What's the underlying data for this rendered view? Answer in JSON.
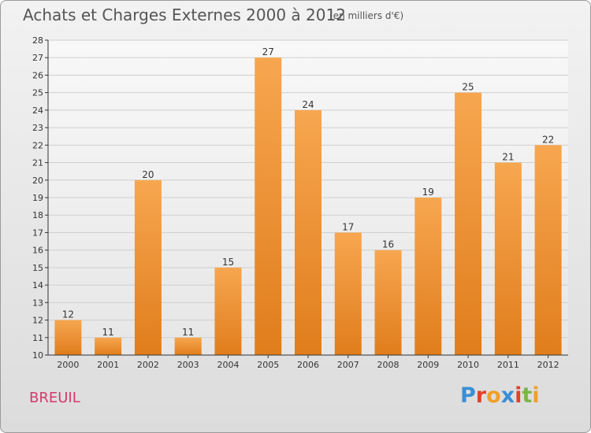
{
  "header": {
    "title": "Achats et Charges Externes 2000 à 2012",
    "subtitle": "(en milliers d'€)"
  },
  "footer": {
    "commune": "BREUIL",
    "logo_text": "Proxiti",
    "logo_letters": [
      "P",
      "r",
      "o",
      "x",
      "i",
      "t",
      "i"
    ],
    "logo_colors": [
      "#3a8fd6",
      "#e3402c",
      "#f0a02a",
      "#3a8fd6",
      "#e3402c",
      "#7ab648",
      "#f0a02a"
    ]
  },
  "chart_data": {
    "type": "bar",
    "categories": [
      "2000",
      "2001",
      "2002",
      "2003",
      "2004",
      "2005",
      "2006",
      "2007",
      "2008",
      "2009",
      "2010",
      "2011",
      "2012"
    ],
    "values": [
      12,
      11,
      20,
      11,
      15,
      27,
      24,
      17,
      16,
      19,
      25,
      21,
      22
    ],
    "title": "Achats et Charges Externes 2000 à 2012",
    "xlabel": "",
    "ylabel": "",
    "ylim": [
      10,
      28
    ],
    "yticks": [
      10,
      11,
      12,
      13,
      14,
      15,
      16,
      17,
      18,
      19,
      20,
      21,
      22,
      23,
      24,
      25,
      26,
      27,
      28
    ],
    "grid": true,
    "data_labels": true,
    "colors": {
      "bar_light": "#f7a650",
      "bar_dark": "#e07d1c",
      "grid": "#cfcfcf",
      "axis": "#333333"
    }
  }
}
